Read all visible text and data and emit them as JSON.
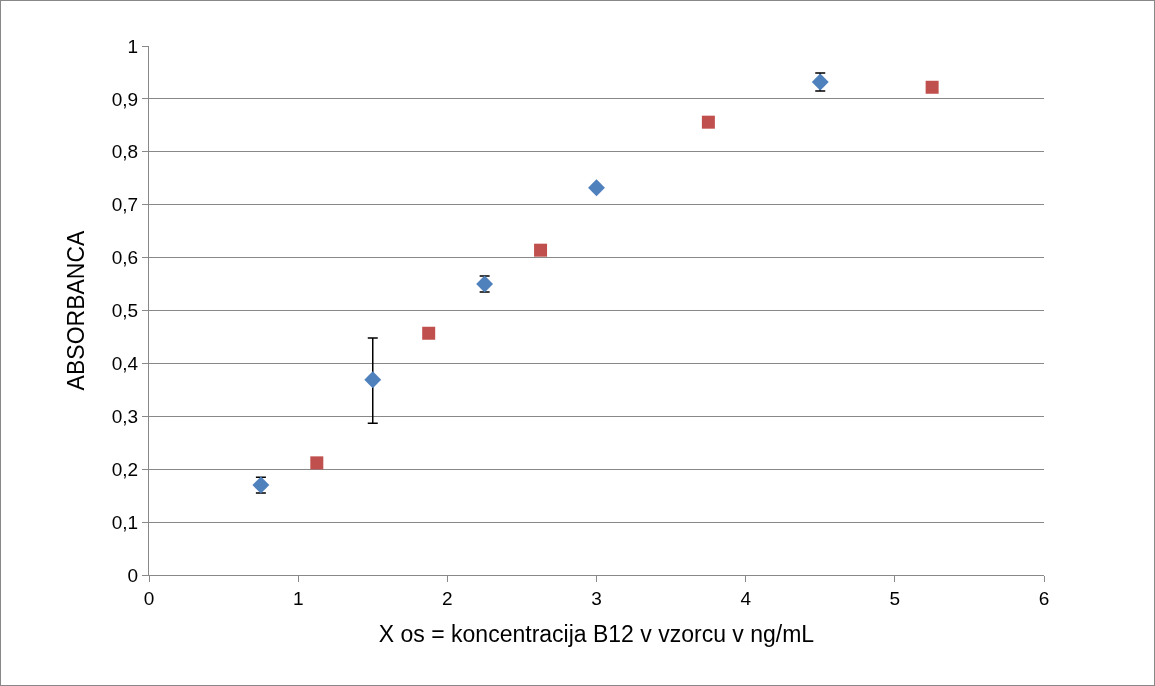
{
  "chart_data": {
    "type": "scatter",
    "xlabel": "X os = koncentracija B12 v vzorcu v ng/mL",
    "ylabel": "ABSORBANCA",
    "xlim": [
      0,
      6
    ],
    "xticks": [
      0,
      1,
      2,
      3,
      4,
      5,
      6
    ],
    "ylim": [
      0,
      1
    ],
    "yticks": [
      {
        "value": 0,
        "label": "0"
      },
      {
        "value": 0.1,
        "label": "0,1"
      },
      {
        "value": 0.2,
        "label": "0,2"
      },
      {
        "value": 0.3,
        "label": "0,3"
      },
      {
        "value": 0.4,
        "label": "0,4"
      },
      {
        "value": 0.5,
        "label": "0,5"
      },
      {
        "value": 0.6,
        "label": "0,6"
      },
      {
        "value": 0.7,
        "label": "0,7"
      },
      {
        "value": 0.8,
        "label": "0,8"
      },
      {
        "value": 0.9,
        "label": "0,9"
      },
      {
        "value": 1,
        "label": "1"
      }
    ],
    "grid": "y",
    "series": [
      {
        "color": "#4f81bd",
        "marker": "diamond",
        "x": [
          0.75,
          1.5,
          2.25,
          3,
          4.5
        ],
        "values": [
          0.17,
          0.369,
          0.55,
          0.732,
          0.932
        ],
        "errors": [
          0.015,
          [
            0.287,
            0.448
          ],
          0.015,
          null,
          0.017
        ]
      },
      {
        "color": "#c0504d",
        "marker": "square",
        "x": [
          1.125,
          1.875,
          2.625,
          3.75,
          5.25
        ],
        "values": [
          0.212,
          0.457,
          0.614,
          0.856,
          0.922
        ]
      }
    ]
  }
}
